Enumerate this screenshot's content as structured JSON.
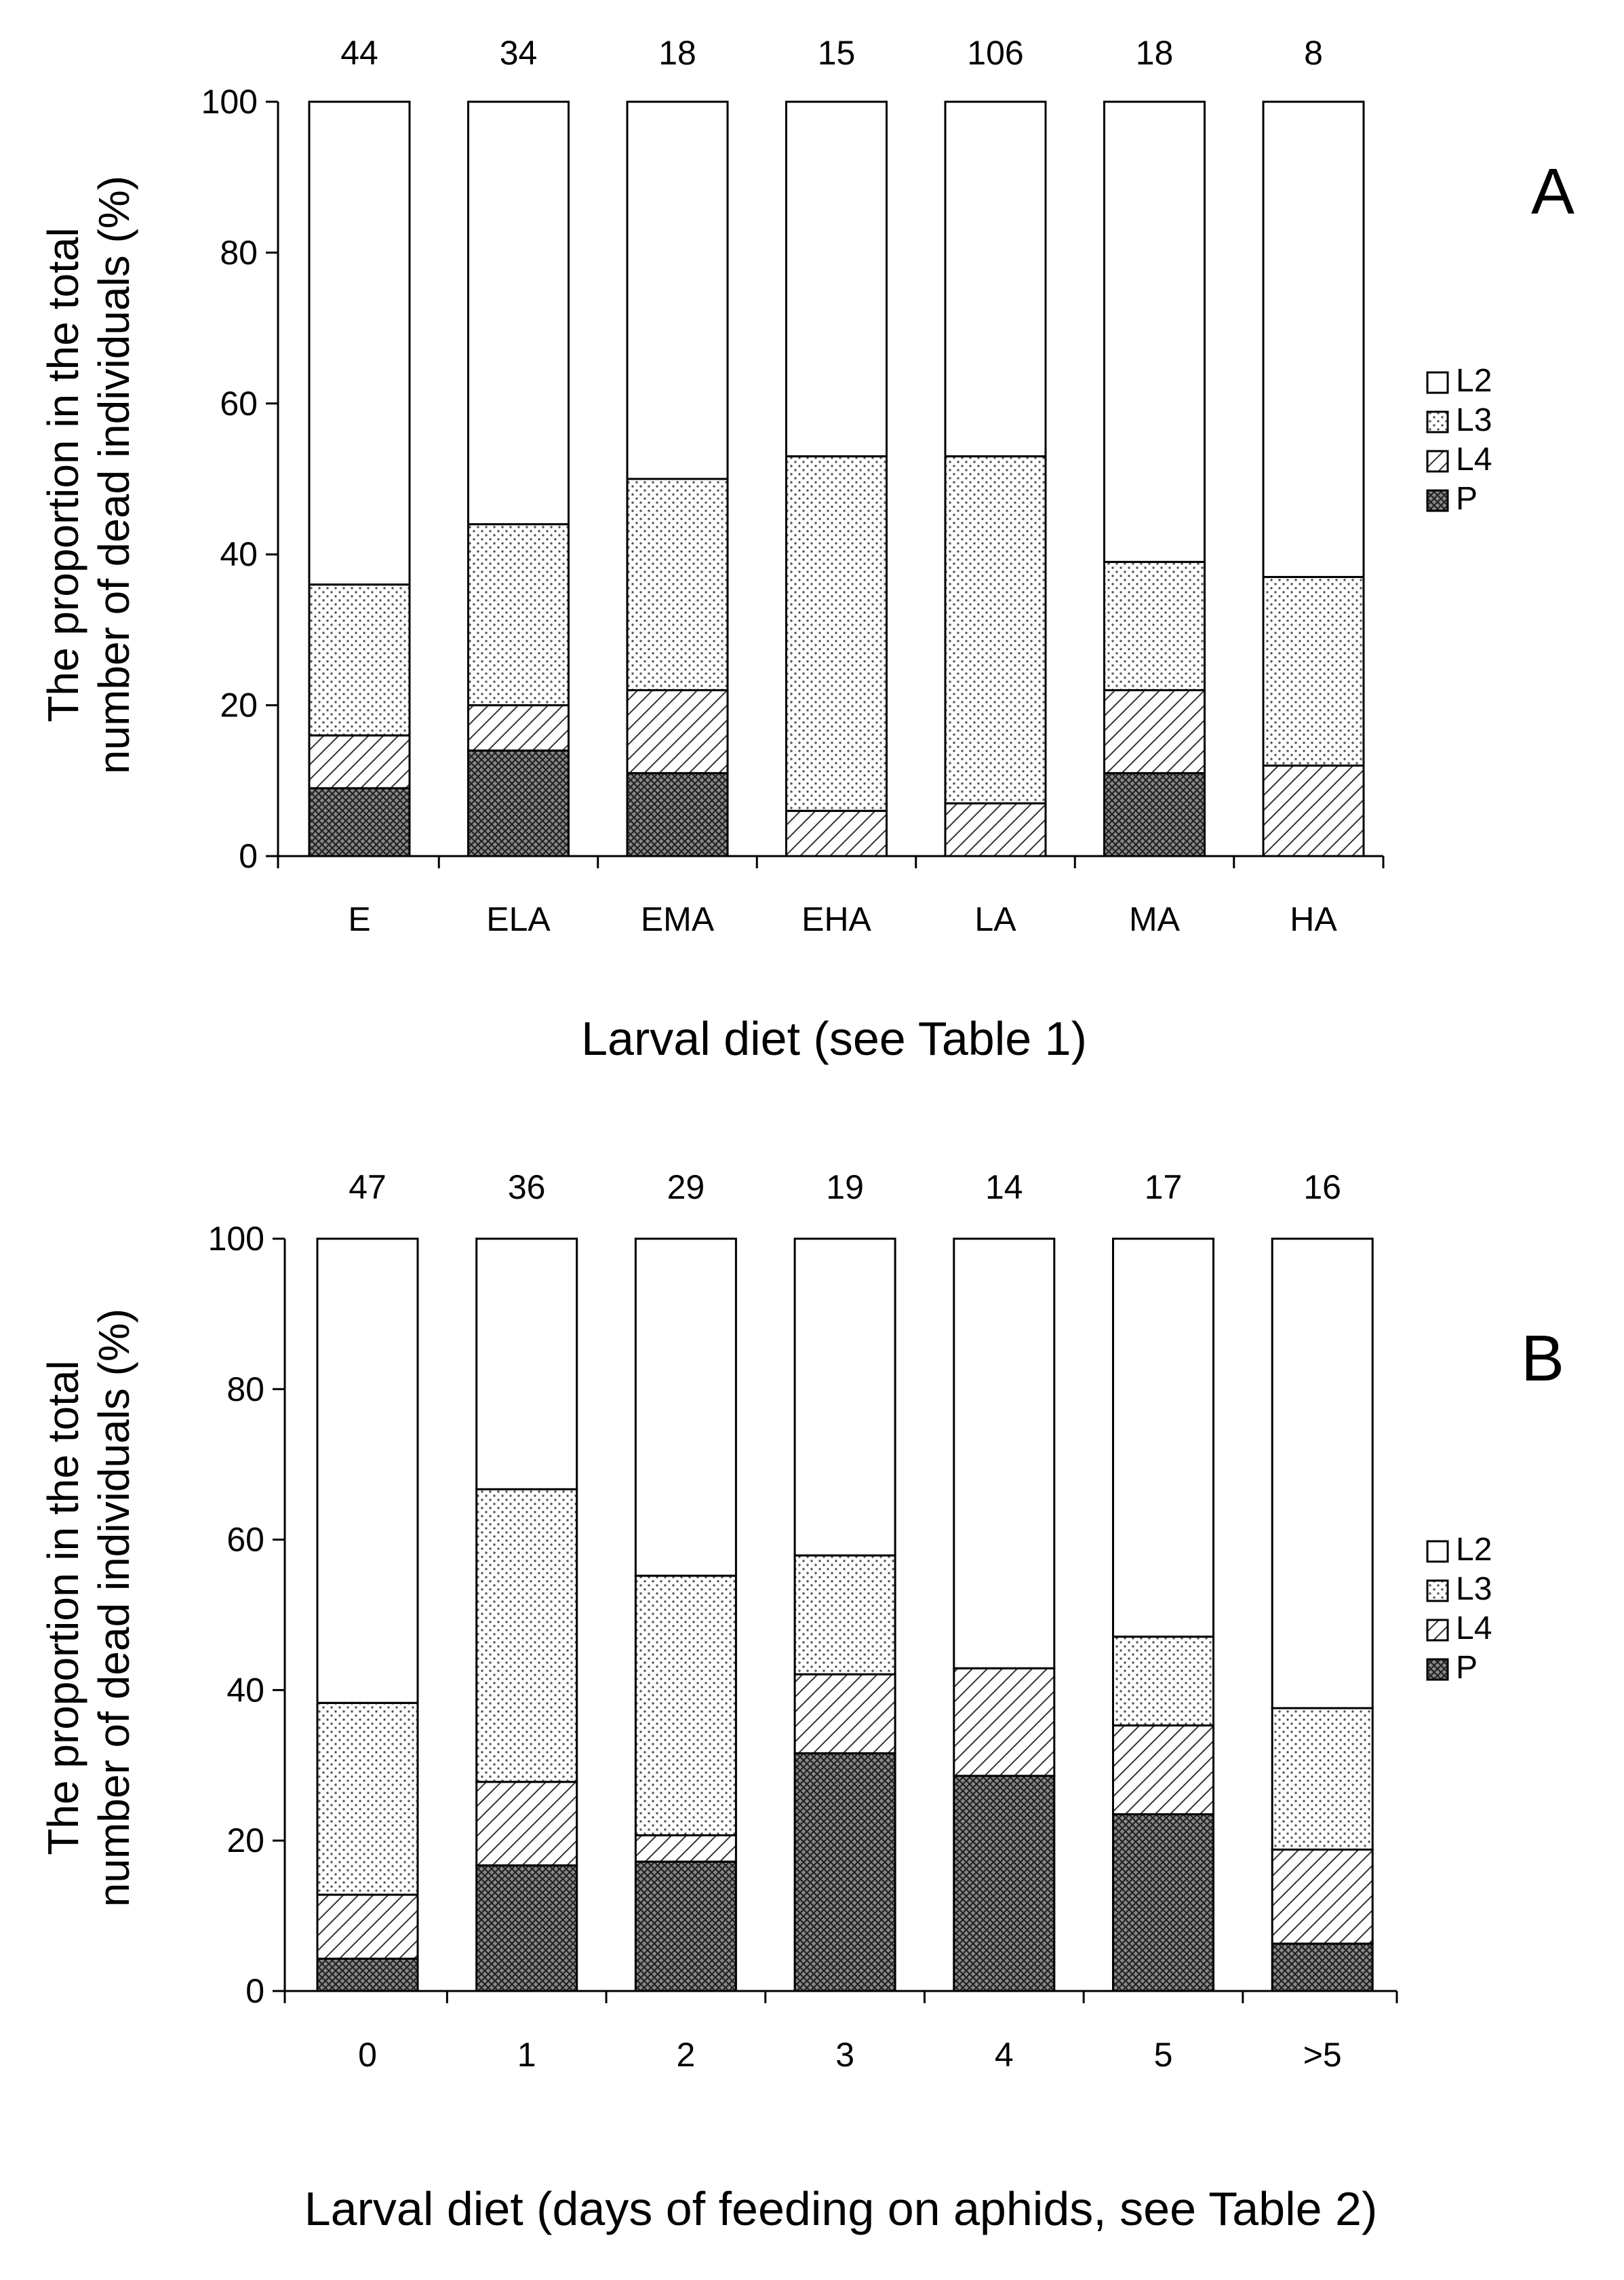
{
  "chart_data": [
    {
      "type": "bar",
      "stacked": true,
      "panel_label": "A",
      "title": "",
      "categories": [
        "E",
        "ELA",
        "EMA",
        "EHA",
        "LA",
        "MA",
        "HA"
      ],
      "counts": [
        "44",
        "34",
        "18",
        "15",
        "106",
        "18",
        "8"
      ],
      "series": [
        {
          "name": "P",
          "pattern": "pat-P",
          "values": [
            9,
            14,
            11,
            0,
            0,
            11,
            0
          ]
        },
        {
          "name": "L4",
          "pattern": "pat-L4",
          "values": [
            7,
            6,
            11,
            6,
            7,
            11,
            12
          ]
        },
        {
          "name": "L3",
          "pattern": "pat-L3",
          "values": [
            20,
            24,
            28,
            47,
            46,
            17,
            25
          ]
        },
        {
          "name": "L2",
          "pattern": "pat-L2",
          "values": [
            64,
            56,
            50,
            47,
            47,
            61,
            63
          ]
        }
      ],
      "legend_order": [
        "L2",
        "L3",
        "L4",
        "P"
      ],
      "ylabel_line1": "The proportion in the total",
      "ylabel_line2": "number of dead individuals (%)",
      "xlabel": "Larval diet (see Table 1)",
      "ylim": [
        0,
        100
      ],
      "yticks": [
        "0",
        "20",
        "40",
        "60",
        "80",
        "100"
      ],
      "legend_position": "right"
    },
    {
      "type": "bar",
      "stacked": true,
      "panel_label": "B",
      "title": "",
      "categories": [
        "0",
        "1",
        "2",
        "3",
        "4",
        "5",
        ">5"
      ],
      "counts": [
        "47",
        "36",
        "29",
        "19",
        "14",
        "17",
        "16"
      ],
      "series": [
        {
          "name": "P",
          "pattern": "pat-P",
          "values": [
            4.3,
            16.7,
            17.2,
            31.6,
            28.6,
            23.5,
            6.3
          ]
        },
        {
          "name": "L4",
          "pattern": "pat-L4",
          "values": [
            8.5,
            11.1,
            3.5,
            10.5,
            14.3,
            11.8,
            12.5
          ]
        },
        {
          "name": "L3",
          "pattern": "pat-L3",
          "values": [
            25.5,
            38.9,
            34.5,
            15.8,
            0,
            11.8,
            18.8
          ]
        },
        {
          "name": "L2",
          "pattern": "pat-L2",
          "values": [
            61.7,
            33.3,
            44.8,
            42.1,
            57.1,
            52.9,
            62.4
          ]
        }
      ],
      "legend_order": [
        "L2",
        "L3",
        "L4",
        "P"
      ],
      "ylabel_line1": "The proportion in the total",
      "ylabel_line2": "number of dead individuals (%)",
      "xlabel": "Larval diet (days of feeding on aphids, see Table 2)",
      "ylim": [
        0,
        100
      ],
      "yticks": [
        "0",
        "20",
        "40",
        "60",
        "80",
        "100"
      ],
      "legend_position": "right"
    }
  ]
}
